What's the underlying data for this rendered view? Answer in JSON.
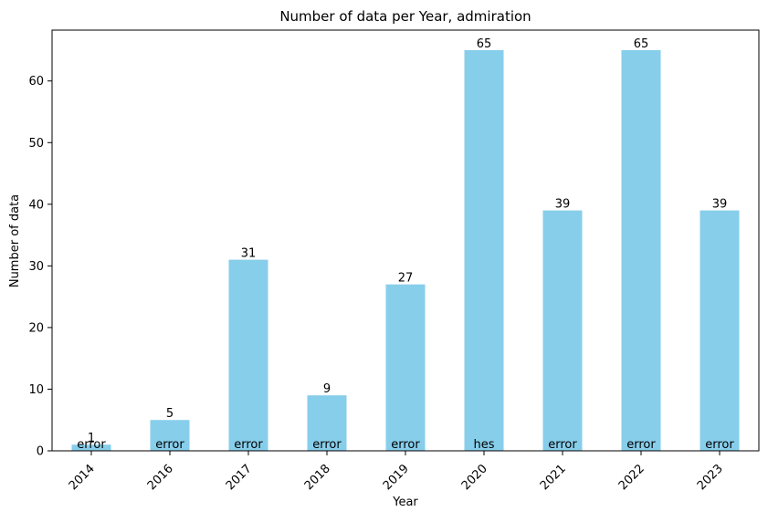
{
  "chart_data": {
    "type": "bar",
    "title": "Number of data per Year, admiration",
    "xlabel": "Year",
    "ylabel": "Number of data",
    "categories": [
      "2014",
      "2016",
      "2017",
      "2018",
      "2019",
      "2020",
      "2021",
      "2022",
      "2023"
    ],
    "values": [
      1,
      5,
      31,
      9,
      27,
      65,
      39,
      65,
      39
    ],
    "bar_annotations": [
      "error",
      "error",
      "error",
      "error",
      "error",
      "hes",
      "error",
      "error",
      "error"
    ],
    "yticks": [
      0,
      10,
      20,
      30,
      40,
      50,
      60
    ],
    "ylim": [
      0,
      68.25
    ],
    "grid": false,
    "legend": "none",
    "bar_color": "#87ceeb"
  }
}
